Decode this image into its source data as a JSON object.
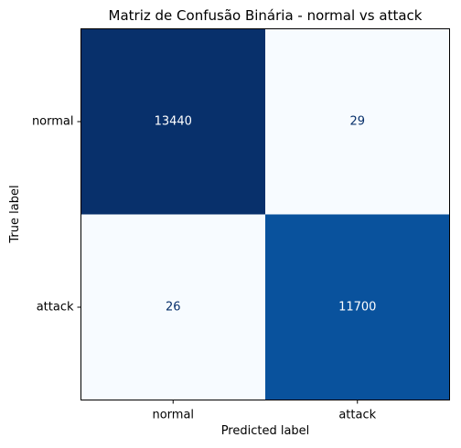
{
  "chart_data": {
    "type": "heatmap",
    "title": "Matriz de Confusão Binária - normal vs attack",
    "xlabel": "Predicted label",
    "ylabel": "True label",
    "x_categories": [
      "normal",
      "attack"
    ],
    "y_categories": [
      "normal",
      "attack"
    ],
    "values": [
      [
        13440,
        29
      ],
      [
        26,
        11700
      ]
    ],
    "colormap": "Blues",
    "color_low": "#f7fbff",
    "color_high": "#08306b",
    "text_color_on_dark": "#ffffff",
    "text_color_on_light": "#08306b",
    "colorbar": false,
    "grid": false
  }
}
